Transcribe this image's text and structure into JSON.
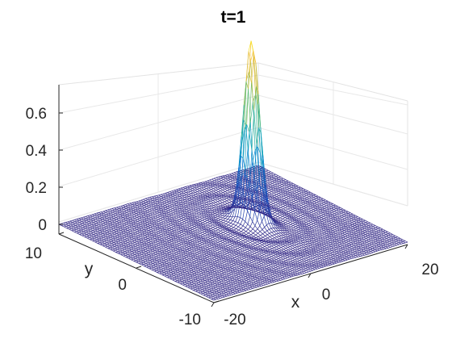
{
  "chart_data": {
    "type": "surface",
    "title": "t=1",
    "xlabel": "x",
    "ylabel": "y",
    "zlabel": "",
    "x_ticks": [
      "-20",
      "0",
      "20"
    ],
    "y_ticks": [
      "-10",
      "0",
      "10"
    ],
    "z_ticks": [
      "0",
      "0.2",
      "0.4",
      "0.6"
    ],
    "xlim": [
      -20,
      20
    ],
    "ylim": [
      -10,
      10
    ],
    "zlim": [
      0,
      0.75
    ],
    "grid": true,
    "colormap": "parula",
    "surface": {
      "peak_value": 0.73,
      "peak_x": 5,
      "peak_y": 1,
      "width_x": 1.3,
      "width_y": 1.3,
      "background_level": 0.0,
      "ripple_amplitude": 0.008
    }
  }
}
